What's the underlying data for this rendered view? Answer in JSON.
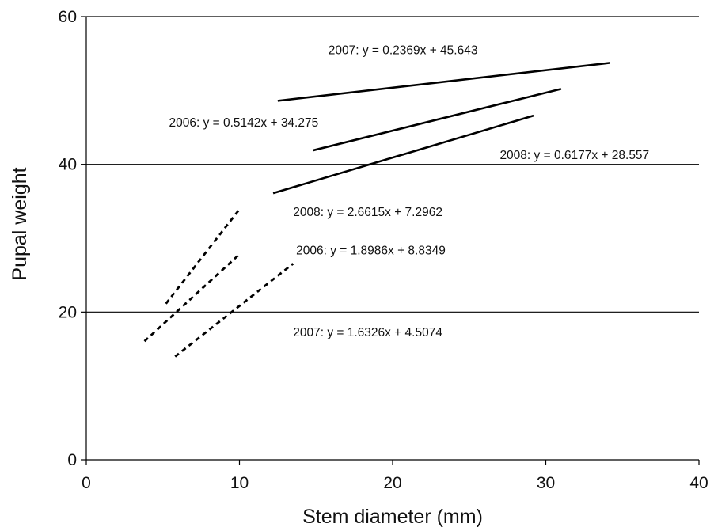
{
  "chart_data": {
    "type": "line",
    "xlabel": "Stem diameter (mm)",
    "ylabel": "Pupal weight",
    "xlim": [
      0,
      40
    ],
    "ylim": [
      0,
      60
    ],
    "xticks": [
      0,
      10,
      20,
      30,
      40
    ],
    "yticks": [
      0,
      20,
      40,
      60
    ],
    "grid": "horizontal",
    "line_color": "#000000",
    "series": [
      {
        "style": "solid",
        "equation": "2007: y = 0.2369x + 45.643",
        "x_range": [
          12.5,
          34.2
        ],
        "slope": 0.2369,
        "intercept": 45.643,
        "label_x": 15.8,
        "label_y": 54.9
      },
      {
        "style": "solid",
        "equation": "2006: y = 0.5142x + 34.275",
        "x_range": [
          14.8,
          31.0
        ],
        "slope": 0.5142,
        "intercept": 34.275,
        "label_x": 5.4,
        "label_y": 45.1
      },
      {
        "style": "solid",
        "equation": "2008: y = 0.6177x + 28.557",
        "x_range": [
          12.2,
          29.2
        ],
        "slope": 0.6177,
        "intercept": 28.557,
        "label_x": 27.0,
        "label_y": 40.7
      },
      {
        "style": "dashed",
        "equation": "2008: y = 2.6615x + 7.2962",
        "x_range": [
          5.2,
          10.0
        ],
        "slope": 2.6615,
        "intercept": 7.2962,
        "label_x": 13.5,
        "label_y": 33.0
      },
      {
        "style": "dashed",
        "equation": "2006: y = 1.8986x + 8.8349",
        "x_range": [
          3.8,
          10.0
        ],
        "slope": 1.8986,
        "intercept": 8.8349,
        "label_x": 13.7,
        "label_y": 27.8
      },
      {
        "style": "dashed",
        "equation": "2007: y = 1.6326x + 4.5074",
        "x_range": [
          5.8,
          13.5
        ],
        "slope": 1.6326,
        "intercept": 4.5074,
        "label_x": 13.5,
        "label_y": 16.7
      }
    ]
  }
}
